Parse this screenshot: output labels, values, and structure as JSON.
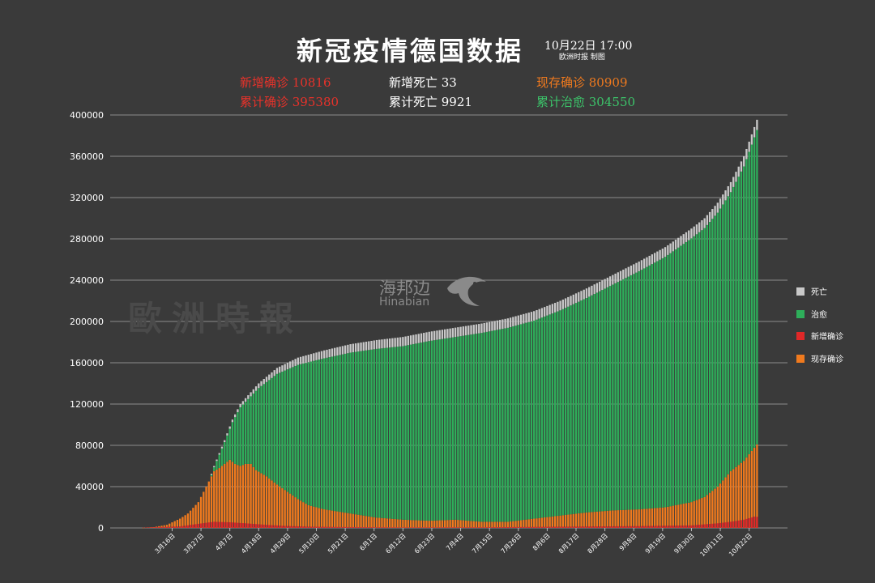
{
  "header": {
    "title": "新冠疫情德国数据",
    "date": "10月22日  17:00",
    "source": "欧洲时报 制图"
  },
  "stats": {
    "new_confirmed": "新增确诊 10816",
    "cum_confirmed": "累计确诊 395380",
    "new_deaths": "新增死亡 33",
    "cum_deaths": "累计死亡 9921",
    "active": "现存确诊 80909",
    "recovered": "累计治愈 304550"
  },
  "colors": {
    "background": "#3a3a3a",
    "deaths": "#c8c8c8",
    "recovered": "#2eae5a",
    "new_cases": "#e02828",
    "active": "#f07a1e",
    "grid": "#8c8c8c",
    "red_text": "#e8322a",
    "orange_text": "#f07a1e",
    "green_text": "#3cc46a"
  },
  "watermark": {
    "text": "歐洲時報",
    "logo_cn": "海邦边",
    "logo_en": "Hinabian"
  },
  "chart_data": {
    "type": "bar",
    "stacked": true,
    "title": "新冠疫情德国数据",
    "ylim": [
      0,
      400000
    ],
    "yticks": [
      "0",
      "40000",
      "80000",
      "120000",
      "160000",
      "200000",
      "240000",
      "280000",
      "320000",
      "360000",
      "400000"
    ],
    "xticks": [
      "3月16日",
      "3月27日",
      "4月7日",
      "4月18日",
      "4月29日",
      "5月10日",
      "5月21日",
      "6月1日",
      "6月12日",
      "6月23日",
      "7月4日",
      "7月15日",
      "7月26日",
      "8月6日",
      "8月17日",
      "8月28日",
      "9月8日",
      "9月19日",
      "9月30日",
      "10月11日",
      "10月22日"
    ],
    "series_names": [
      "现存确诊",
      "新增确诊",
      "治愈",
      "死亡"
    ],
    "legend": [
      "死亡",
      "治愈",
      "新增确诊",
      "现存确诊"
    ],
    "legend_position": "right",
    "days": 235,
    "knots_total": [
      [
        0,
        0
      ],
      [
        5,
        800
      ],
      [
        10,
        3000
      ],
      [
        15,
        9000
      ],
      [
        18,
        14000
      ],
      [
        22,
        25000
      ],
      [
        26,
        45000
      ],
      [
        28,
        60000
      ],
      [
        32,
        85000
      ],
      [
        35,
        105000
      ],
      [
        38,
        120000
      ],
      [
        45,
        140000
      ],
      [
        52,
        155000
      ],
      [
        60,
        165000
      ],
      [
        70,
        172000
      ],
      [
        80,
        178000
      ],
      [
        90,
        182000
      ],
      [
        100,
        185000
      ],
      [
        110,
        190000
      ],
      [
        120,
        194000
      ],
      [
        130,
        198000
      ],
      [
        140,
        203000
      ],
      [
        150,
        210000
      ],
      [
        160,
        220000
      ],
      [
        170,
        232000
      ],
      [
        180,
        245000
      ],
      [
        190,
        258000
      ],
      [
        200,
        272000
      ],
      [
        210,
        290000
      ],
      [
        215,
        300000
      ],
      [
        220,
        315000
      ],
      [
        225,
        335000
      ],
      [
        230,
        360000
      ],
      [
        235,
        395380
      ]
    ],
    "knots_active": [
      [
        0,
        0
      ],
      [
        5,
        800
      ],
      [
        10,
        3000
      ],
      [
        15,
        9000
      ],
      [
        18,
        14000
      ],
      [
        22,
        25000
      ],
      [
        26,
        45000
      ],
      [
        28,
        55000
      ],
      [
        30,
        58000
      ],
      [
        32,
        62000
      ],
      [
        34,
        66000
      ],
      [
        36,
        62000
      ],
      [
        38,
        60000
      ],
      [
        40,
        62000
      ],
      [
        42,
        62000
      ],
      [
        44,
        56000
      ],
      [
        48,
        50000
      ],
      [
        52,
        42000
      ],
      [
        56,
        35000
      ],
      [
        60,
        28000
      ],
      [
        64,
        22000
      ],
      [
        70,
        18000
      ],
      [
        80,
        14000
      ],
      [
        90,
        10000
      ],
      [
        100,
        8000
      ],
      [
        110,
        7000
      ],
      [
        120,
        8000
      ],
      [
        130,
        6000
      ],
      [
        140,
        6000
      ],
      [
        150,
        9000
      ],
      [
        160,
        12000
      ],
      [
        170,
        15000
      ],
      [
        180,
        17000
      ],
      [
        190,
        18000
      ],
      [
        200,
        20000
      ],
      [
        210,
        25000
      ],
      [
        215,
        30000
      ],
      [
        220,
        40000
      ],
      [
        225,
        55000
      ],
      [
        230,
        65000
      ],
      [
        235,
        80909
      ]
    ],
    "knots_deaths": [
      [
        0,
        0
      ],
      [
        20,
        100
      ],
      [
        30,
        1500
      ],
      [
        40,
        3500
      ],
      [
        50,
        5500
      ],
      [
        60,
        7000
      ],
      [
        75,
        8000
      ],
      [
        100,
        8900
      ],
      [
        150,
        9200
      ],
      [
        200,
        9400
      ],
      [
        220,
        9600
      ],
      [
        235,
        9921
      ]
    ],
    "knots_new": [
      [
        0,
        200
      ],
      [
        15,
        1500
      ],
      [
        22,
        4000
      ],
      [
        28,
        6000
      ],
      [
        34,
        5500
      ],
      [
        40,
        4500
      ],
      [
        48,
        3000
      ],
      [
        55,
        2000
      ],
      [
        65,
        1200
      ],
      [
        80,
        800
      ],
      [
        100,
        500
      ],
      [
        130,
        600
      ],
      [
        160,
        1200
      ],
      [
        190,
        1800
      ],
      [
        210,
        2500
      ],
      [
        220,
        4500
      ],
      [
        225,
        6000
      ],
      [
        230,
        8000
      ],
      [
        234,
        11000
      ],
      [
        235,
        10816
      ]
    ]
  }
}
